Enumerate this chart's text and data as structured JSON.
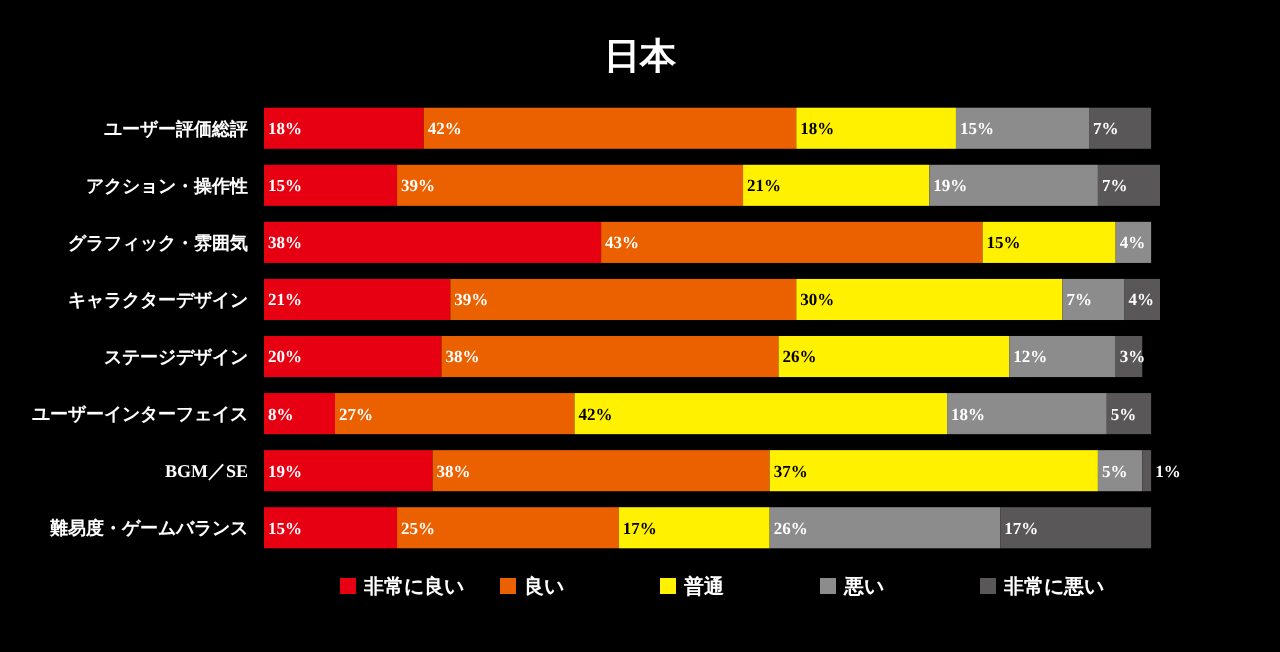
{
  "chart_data": {
    "type": "bar",
    "orientation": "horizontal",
    "stacked": true,
    "title": "日本",
    "categories": [
      "ユーザー評価総評",
      "アクション・操作性",
      "グラフィック・雰囲気",
      "キャラクターデザイン",
      "ステージデザイン",
      "ユーザーインターフェイス",
      "BGM／SE",
      "難易度・ゲームバランス"
    ],
    "xlim": [
      0,
      101
    ],
    "tick_labels": "y",
    "legend": "bottom",
    "series": [
      {
        "name": "非常に良い",
        "color": "#e60012",
        "values": [
          18,
          15,
          38,
          21,
          20,
          8,
          19,
          15
        ],
        "value_labels": [
          "18%",
          "15%",
          "38%",
          "21%",
          "20%",
          "8%",
          "19%",
          "15%"
        ]
      },
      {
        "name": "良い",
        "color": "#eb6100",
        "values": [
          42,
          39,
          43,
          39,
          38,
          27,
          38,
          25
        ],
        "value_labels": [
          "42%",
          "39%",
          "43%",
          "39%",
          "38%",
          "27%",
          "38%",
          "25%"
        ]
      },
      {
        "name": "普通",
        "color": "#fff100",
        "values": [
          18,
          21,
          15,
          30,
          26,
          42,
          37,
          17
        ],
        "value_labels": [
          "18%",
          "21%",
          "15%",
          "30%",
          "26%",
          "42%",
          "37%",
          "17%"
        ]
      },
      {
        "name": "悪い",
        "color": "#8c8c8c",
        "values": [
          15,
          19,
          4,
          7,
          12,
          18,
          5,
          26
        ],
        "value_labels": [
          "15%",
          "19%",
          "4%",
          "7%",
          "12%",
          "18%",
          "5%",
          "26%"
        ]
      },
      {
        "name": "非常に悪い",
        "color": "#595757",
        "values": [
          7,
          7,
          null,
          4,
          3,
          5,
          1,
          17
        ],
        "value_labels": [
          "7%",
          "7%",
          null,
          "4%",
          "3%",
          "5%",
          "1%",
          "17%"
        ]
      }
    ]
  }
}
